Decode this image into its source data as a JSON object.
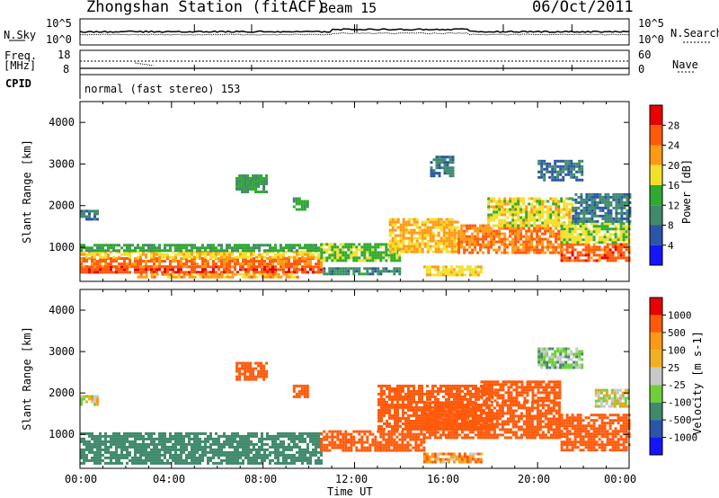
{
  "header": {
    "station": "Zhongshan Station (fitACF)",
    "beam": "Beam 15",
    "date": "06/Oct/2011"
  },
  "noise_panel": {
    "left_label": "N.Sky",
    "right_label": "N.Search",
    "ticks_left": [
      "10^5",
      "10^0"
    ],
    "ticks_right": [
      "10^5",
      "10^0"
    ]
  },
  "freq_panel": {
    "left_label_top": "Freq.",
    "left_label_bottom": "[MHz]",
    "ticks_left": [
      "18",
      "8"
    ],
    "ticks_right": [
      "60",
      "0"
    ],
    "right_label": "Nave",
    "cpid_label": "CPID",
    "cpid_text": "normal (fast stereo) 153"
  },
  "time_axis": {
    "label": "Time UT",
    "ticks": [
      "00:00",
      "04:00",
      "08:00",
      "12:00",
      "16:00",
      "20:00",
      "00:00"
    ]
  },
  "colors": {
    "power": [
      "#1515ff",
      "#2a55a8",
      "#3f8a6c",
      "#2faa2f",
      "#f3e02a",
      "#ff9a14",
      "#ff5a0a",
      "#e80000"
    ],
    "velocity": [
      "#e80000",
      "#ff5a0a",
      "#ff9a14",
      "#f0b020",
      "#c8c8c8",
      "#6fcf3a",
      "#3f8a6c",
      "#2a55a8",
      "#1515ff"
    ]
  },
  "chart_data": [
    {
      "type": "heatmap",
      "panel": "power",
      "ylabel": "Slant Range [km]",
      "ylim": [
        180,
        4500
      ],
      "yticks": [
        1000,
        2000,
        3000,
        4000
      ],
      "xlabel": "Time UT",
      "xlim": [
        0,
        24
      ],
      "colorbar": {
        "label": "Power [dB]",
        "range": [
          0,
          32
        ],
        "ticks": [
          4,
          8,
          12,
          16,
          20,
          24,
          28
        ]
      },
      "regions": [
        {
          "t0": 0,
          "t1": 0.8,
          "r0": 1700,
          "r1": 1900,
          "value": 8
        },
        {
          "t0": 0,
          "t1": 10.5,
          "r0": 380,
          "r1": 560,
          "value": 27
        },
        {
          "t0": 0,
          "t1": 10.5,
          "r0": 560,
          "r1": 760,
          "value": 25
        },
        {
          "t0": 0,
          "t1": 10.5,
          "r0": 760,
          "r1": 920,
          "value": 19
        },
        {
          "t0": 0,
          "t1": 10.5,
          "r0": 920,
          "r1": 1080,
          "value": 13
        },
        {
          "t0": 2.5,
          "t1": 9.5,
          "r0": 300,
          "r1": 380,
          "value": 22
        },
        {
          "t0": 6.8,
          "t1": 8.2,
          "r0": 2350,
          "r1": 2750,
          "value": 12
        },
        {
          "t0": 9.3,
          "t1": 9.9,
          "r0": 1900,
          "r1": 2200,
          "value": 13
        },
        {
          "t0": 10.5,
          "t1": 14.0,
          "r0": 700,
          "r1": 1100,
          "value": 15
        },
        {
          "t0": 10.5,
          "t1": 14.0,
          "r0": 360,
          "r1": 520,
          "value": 10
        },
        {
          "t0": 13.5,
          "t1": 16.5,
          "r0": 900,
          "r1": 1700,
          "value": 21
        },
        {
          "t0": 15.0,
          "t1": 17.5,
          "r0": 340,
          "r1": 560,
          "value": 19
        },
        {
          "t0": 15.3,
          "t1": 16.3,
          "r0": 2700,
          "r1": 3200,
          "value": 8
        },
        {
          "t0": 16.5,
          "t1": 21.0,
          "r0": 900,
          "r1": 1550,
          "value": 24
        },
        {
          "t0": 17.8,
          "t1": 21.5,
          "r0": 1550,
          "r1": 2200,
          "value": 18
        },
        {
          "t0": 21.0,
          "t1": 24.0,
          "r0": 650,
          "r1": 1100,
          "value": 26
        },
        {
          "t0": 21.0,
          "t1": 24.0,
          "r0": 1100,
          "r1": 1600,
          "value": 17
        },
        {
          "t0": 21.5,
          "t1": 24.0,
          "r0": 1600,
          "r1": 2300,
          "value": 9
        },
        {
          "t0": 20.0,
          "t1": 22.0,
          "r0": 2600,
          "r1": 3100,
          "value": 8
        }
      ]
    },
    {
      "type": "heatmap",
      "panel": "velocity",
      "ylabel": "Slant Range [km]",
      "ylim": [
        180,
        4500
      ],
      "yticks": [
        1000,
        2000,
        3000,
        4000
      ],
      "xlabel": "Time UT",
      "xlim": [
        0,
        24
      ],
      "colorbar": {
        "label": "Velocity [m s-1]",
        "ticks": [
          "1000",
          "500",
          "100",
          "25",
          "-25",
          "-100",
          "-500",
          "-1000"
        ]
      },
      "regions": [
        {
          "t0": 0,
          "t1": 0.8,
          "r0": 1700,
          "r1": 1950,
          "value": 0
        },
        {
          "t0": 0,
          "t1": 10.5,
          "r0": 300,
          "r1": 1050,
          "value": 200
        },
        {
          "t0": 6.8,
          "t1": 8.2,
          "r0": 2350,
          "r1": 2750,
          "value": -300
        },
        {
          "t0": 9.3,
          "t1": 9.9,
          "r0": 1900,
          "r1": 2200,
          "value": -300
        },
        {
          "t0": 10.5,
          "t1": 15.0,
          "r0": 600,
          "r1": 1100,
          "value": -300
        },
        {
          "t0": 13.0,
          "t1": 18.0,
          "r0": 1100,
          "r1": 2200,
          "value": -400
        },
        {
          "t0": 15.0,
          "t1": 21.0,
          "r0": 900,
          "r1": 1800,
          "value": -400
        },
        {
          "t0": 17.5,
          "t1": 21.0,
          "r0": 1800,
          "r1": 2300,
          "value": -300
        },
        {
          "t0": 15.0,
          "t1": 17.5,
          "r0": 340,
          "r1": 560,
          "value": -80
        },
        {
          "t0": 21.0,
          "t1": 24.0,
          "r0": 600,
          "r1": 1500,
          "value": -300
        },
        {
          "t0": 22.5,
          "t1": 24.0,
          "r0": 1700,
          "r1": 2100,
          "value": 0
        },
        {
          "t0": 20.0,
          "t1": 22.0,
          "r0": 2600,
          "r1": 3100,
          "value": 60
        }
      ]
    }
  ]
}
